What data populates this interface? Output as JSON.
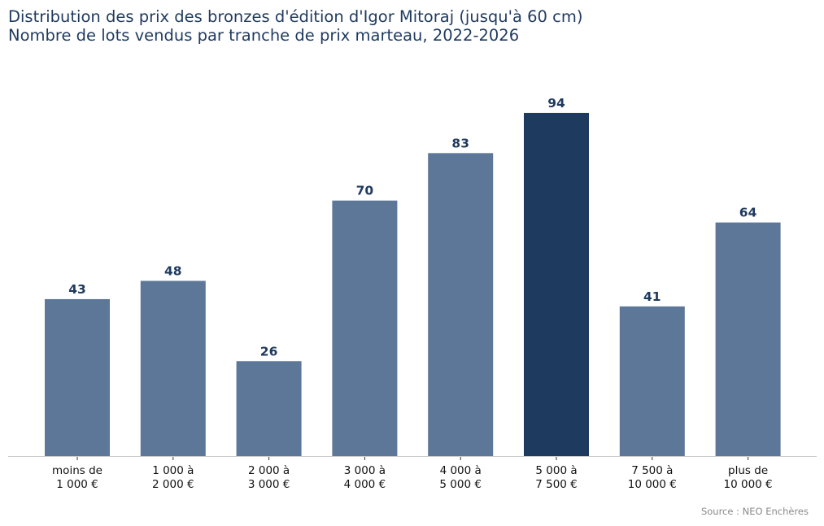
{
  "chart_data": {
    "type": "bar",
    "title": "Distribution des prix des bronzes d'édition d'Igor Mitoraj (jusqu'à 60 cm)",
    "subtitle": "Nombre de lots vendus par tranche de prix marteau, 2022-2026",
    "categories": [
      [
        "moins de",
        "1 000 €"
      ],
      [
        "1 000 à",
        "2 000 €"
      ],
      [
        "2 000 à",
        "3 000 €"
      ],
      [
        "3 000 à",
        "4 000 €"
      ],
      [
        "4 000 à",
        "5 000 €"
      ],
      [
        "5 000 à",
        "7 500 €"
      ],
      [
        "7 500 à",
        "10 000 €"
      ],
      [
        "plus de",
        "10 000 €"
      ]
    ],
    "values": [
      43,
      48,
      26,
      70,
      83,
      94,
      41,
      64
    ],
    "highlight_index": 5,
    "ylim": [
      0,
      105
    ],
    "grid": false,
    "colors": {
      "bar": "#5d7799",
      "highlight": "#1f3a5f",
      "label": "#1f3a5f",
      "axis": "#cccccc"
    }
  },
  "source": "Source : NEO Enchères"
}
